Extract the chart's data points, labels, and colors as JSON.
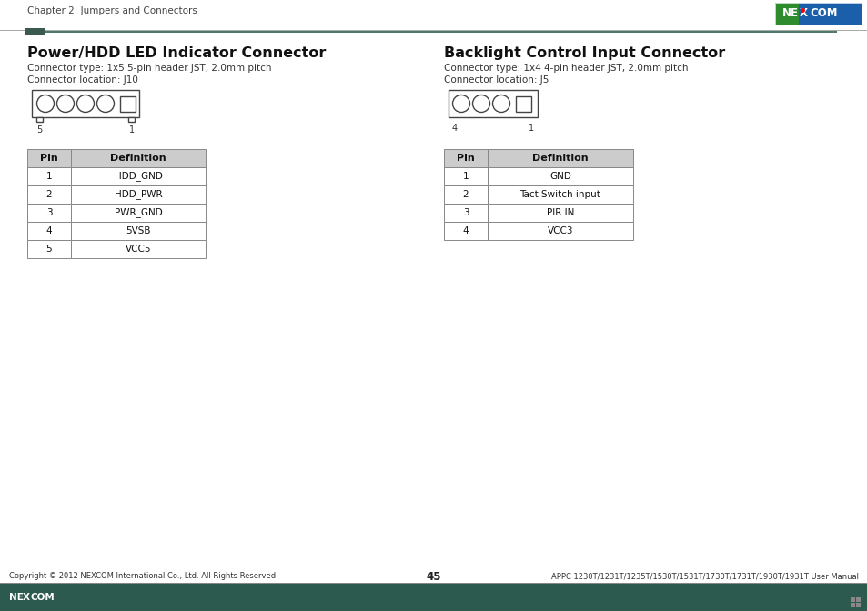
{
  "page_header": "Chapter 2: Jumpers and Connectors",
  "header_accent_color": "#4d7a6a",
  "header_dark_accent": "#3a5a50",
  "left_title": "Power/HDD LED Indicator Connector",
  "left_subtitle1": "Connector type: 1x5 5-pin header JST, 2.0mm pitch",
  "left_subtitle2": "Connector location: J10",
  "right_title": "Backlight Control Input Connector",
  "right_subtitle1": "Connector type: 1x4 4-pin header JST, 2.0mm pitch",
  "right_subtitle2": "Connector location: J5",
  "left_table_headers": [
    "Pin",
    "Definition"
  ],
  "left_table_data": [
    [
      "1",
      "HDD_GND"
    ],
    [
      "2",
      "HDD_PWR"
    ],
    [
      "3",
      "PWR_GND"
    ],
    [
      "4",
      "5VSB"
    ],
    [
      "5",
      "VCC5"
    ]
  ],
  "right_table_headers": [
    "Pin",
    "Definition"
  ],
  "right_table_data": [
    [
      "1",
      "GND"
    ],
    [
      "2",
      "Tact Switch input"
    ],
    [
      "3",
      "PIR IN"
    ],
    [
      "4",
      "VCC3"
    ]
  ],
  "footer_left": "Copyright © 2012 NEXCOM International Co., Ltd. All Rights Reserved.",
  "footer_center": "45",
  "footer_right": "APPC 1230T/1231T/1235T/1530T/1531T/1730T/1731T/1930T/1931T User Manual",
  "footer_bg_color": "#2d5a4e",
  "bg_color": "#ffffff",
  "table_border_color": "#888888",
  "table_header_bg": "#cccccc"
}
